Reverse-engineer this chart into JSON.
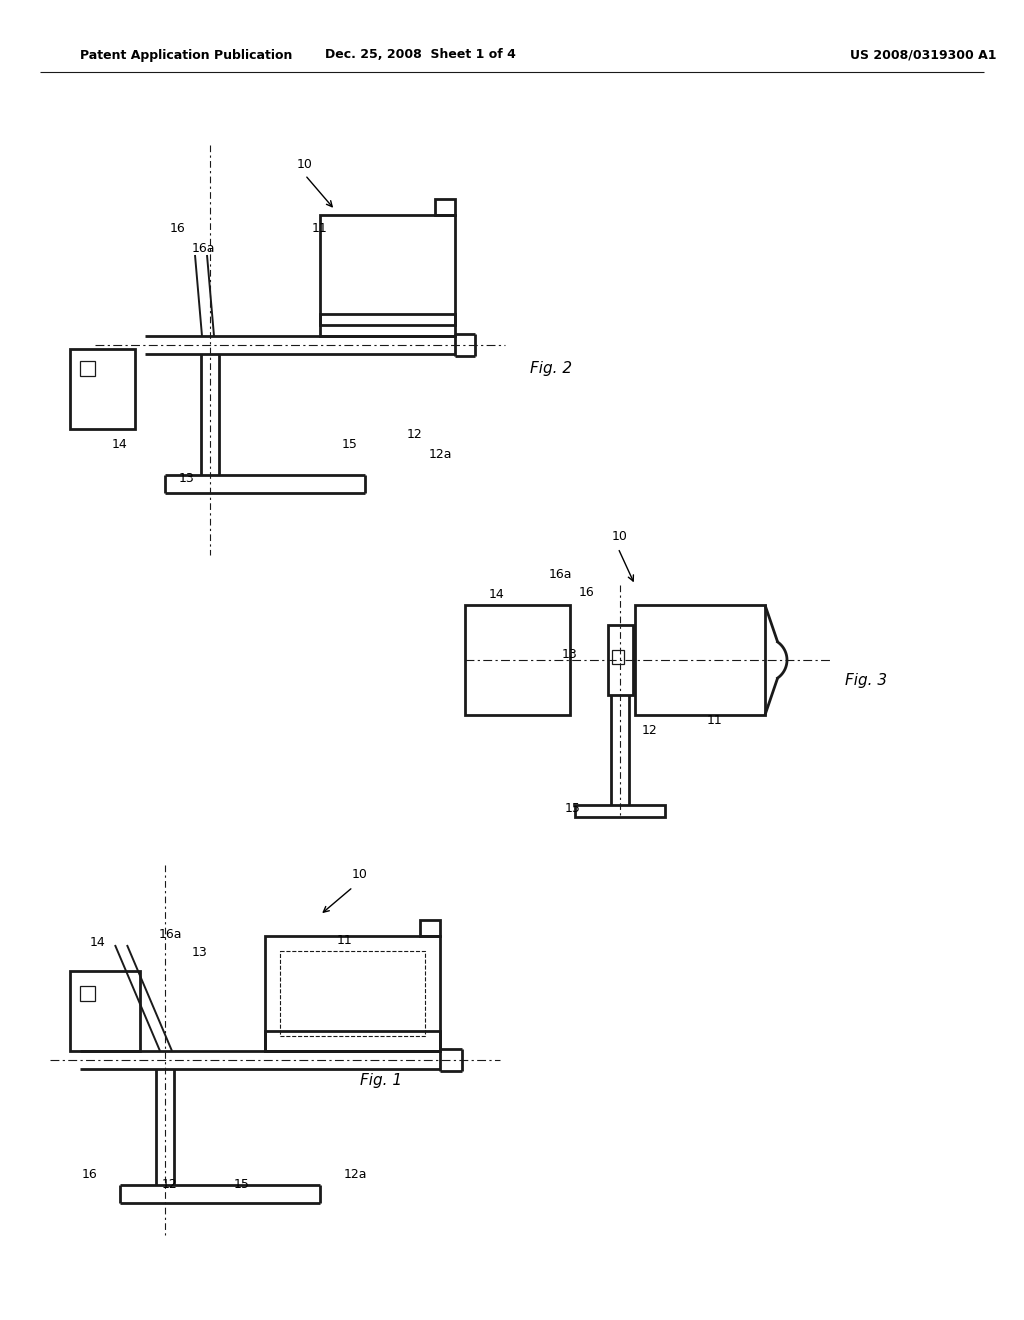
{
  "background_color": "#ffffff",
  "header_left": "Patent Application Publication",
  "header_center": "Dec. 25, 2008  Sheet 1 of 4",
  "header_right": "US 2008/0319300 A1"
}
